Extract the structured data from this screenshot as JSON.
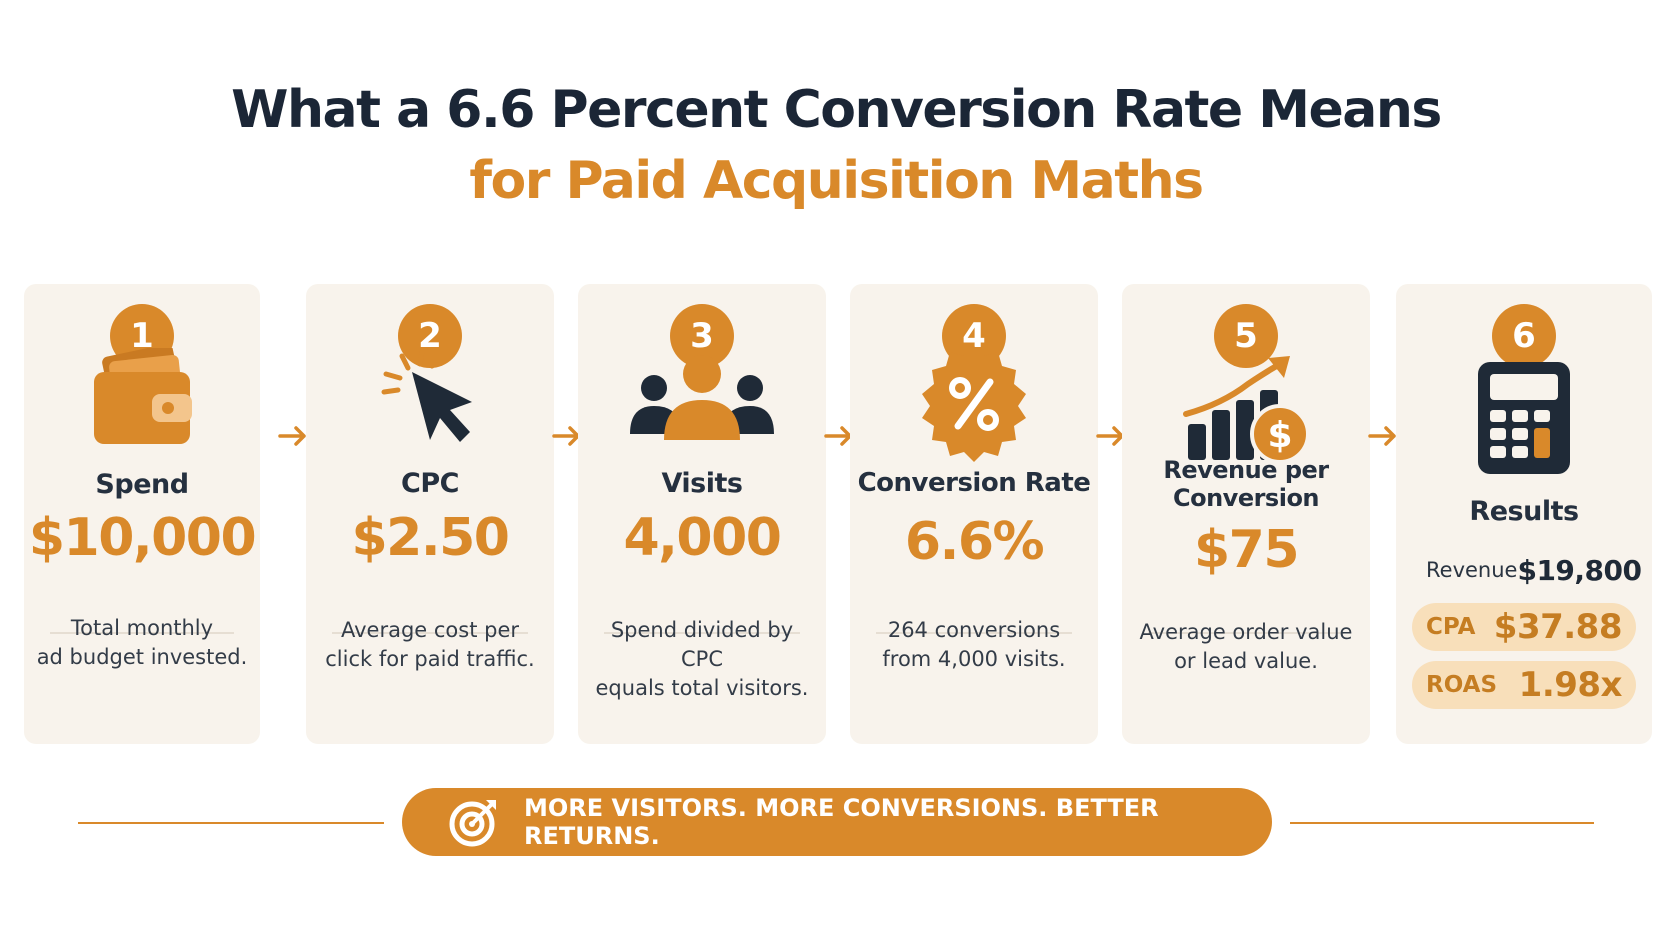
{
  "title": {
    "line1": "What a 6.6 Percent Conversion Rate Means",
    "line2": "for Paid Acquisition Maths"
  },
  "colors": {
    "accent": "#d9892a",
    "dark": "#1b2636",
    "card_bg": "#f8f3ec",
    "pill_bg": "#f8dfba"
  },
  "steps": [
    {
      "number": "1",
      "icon": "wallet-icon",
      "label": "Spend",
      "value": "$10,000",
      "desc_line1": "Total monthly",
      "desc_line2": "ad budget invested."
    },
    {
      "number": "2",
      "icon": "cursor-click-icon",
      "label": "CPC",
      "value": "$2.50",
      "desc_line1": "Average cost per",
      "desc_line2": "click for paid traffic."
    },
    {
      "number": "3",
      "icon": "people-icon",
      "label": "Visits",
      "value": "4,000",
      "desc_line1": "Spend divided by CPC",
      "desc_line2": "equals total visitors."
    },
    {
      "number": "4",
      "icon": "percent-badge-icon",
      "label": "Conversion Rate",
      "value": "6.6%",
      "desc_line1": "264 conversions",
      "desc_line2": "from 4,000 visits."
    },
    {
      "number": "5",
      "icon": "growth-chart-dollar-icon",
      "label_line1": "Revenue per",
      "label_line2": "Conversion",
      "value": "$75",
      "desc_line1": "Average order value",
      "desc_line2": "or lead value."
    },
    {
      "number": "6",
      "icon": "calculator-icon",
      "label": "Results"
    }
  ],
  "results": [
    {
      "key": "Revenue",
      "value": "$19,800"
    },
    {
      "key": "CPA",
      "value": "$37.88"
    },
    {
      "key": "ROAS",
      "value": "1.98x"
    }
  ],
  "banner": {
    "icon": "target-icon",
    "text": "MORE VISITORS. MORE CONVERSIONS. BETTER RETURNS."
  }
}
